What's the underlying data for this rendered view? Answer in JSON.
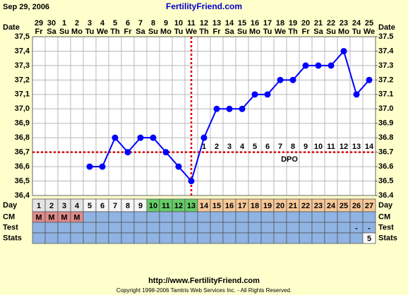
{
  "chart_data": {
    "type": "line",
    "title": "FertilityFriend.com",
    "date": "Sep 29, 2006",
    "date_label": "Date",
    "dates": [
      "29",
      "30",
      "1",
      "2",
      "3",
      "4",
      "5",
      "6",
      "7",
      "8",
      "9",
      "10",
      "11",
      "12",
      "13",
      "14",
      "15",
      "16",
      "17",
      "18",
      "19",
      "20",
      "21",
      "22",
      "23",
      "24",
      "25"
    ],
    "weekdays": [
      "Fr",
      "Sa",
      "Su",
      "Mo",
      "Tu",
      "We",
      "Th",
      "Fr",
      "Sa",
      "Su",
      "Mo",
      "Tu",
      "We",
      "Th",
      "Fr",
      "Sa",
      "Su",
      "Mo",
      "Tu",
      "We",
      "Th",
      "Fr",
      "Sa",
      "Su",
      "Mo",
      "Tu",
      "We"
    ],
    "series": [
      {
        "color": "#0000ff",
        "values": [
          null,
          null,
          null,
          null,
          36.6,
          36.6,
          36.8,
          36.7,
          36.8,
          36.8,
          36.7,
          36.6,
          36.5,
          36.8,
          37.0,
          37.0,
          37.0,
          37.1,
          37.1,
          37.2,
          37.2,
          37.3,
          37.3,
          37.3,
          37.4,
          37.1,
          37.2
        ]
      }
    ],
    "ylim": [
      36.4,
      37.5
    ],
    "yticks": [
      {
        "value": 36.4,
        "label": "36,4"
      },
      {
        "value": 36.5,
        "label": "36,5"
      },
      {
        "value": 36.6,
        "label": "36,6"
      },
      {
        "value": 36.7,
        "label": "36,7"
      },
      {
        "value": 36.8,
        "label": "36,8"
      },
      {
        "value": 36.9,
        "label": "36,9"
      },
      {
        "value": 37.0,
        "label": "37,0"
      },
      {
        "value": 37.1,
        "label": "37,1"
      },
      {
        "value": 37.2,
        "label": "37,2"
      },
      {
        "value": 37.3,
        "label": "37,3"
      },
      {
        "value": 37.4,
        "label": "37,4"
      },
      {
        "value": 37.5,
        "label": "37,5"
      }
    ],
    "y2lim": [
      36.4,
      37.5
    ],
    "y2ticks": [
      36.4,
      36.5,
      36.6,
      36.7,
      36.8,
      36.9,
      {
        "value": 37.0,
        "label": "37.0"
      },
      37.1,
      37.2,
      37.3,
      37.4,
      37.5
    ],
    "grid": true,
    "coverline": 36.7,
    "coverline_color": "#dd0000",
    "ovulation_day": 13,
    "dpo_label": "DPO",
    "dpo": [
      null,
      null,
      null,
      null,
      null,
      null,
      null,
      null,
      null,
      null,
      null,
      null,
      null,
      1,
      2,
      3,
      4,
      5,
      6,
      7,
      8,
      9,
      10,
      11,
      12,
      13,
      14
    ],
    "day_label": "Day",
    "days": [
      1,
      2,
      3,
      4,
      5,
      6,
      7,
      8,
      9,
      10,
      11,
      12,
      13,
      14,
      15,
      16,
      17,
      18,
      19,
      20,
      21,
      22,
      23,
      24,
      25,
      26,
      27
    ],
    "day_colors": [
      "#e4e4e4",
      "#e4e4e4",
      "#e4e4e4",
      "#e4e4e4",
      "#f6f6f6",
      "#f6f6f6",
      "#f6f6f6",
      "#f6f6f6",
      "#f6f6f6",
      "#66cc66",
      "#66cc66",
      "#66cc66",
      "#66cc66",
      "#f8c898",
      "#f8c898",
      "#f8c898",
      "#f8c898",
      "#f8c898",
      "#f8c898",
      "#f8c898",
      "#f8c898",
      "#f8c898",
      "#f8c898",
      "#f8c898",
      "#f8c898",
      "#f8c898",
      "#f8c898"
    ],
    "row_color": "#8fb3e3",
    "cm_label": "CM",
    "cm": [
      "M",
      "M",
      "M",
      "M",
      null,
      null,
      null,
      null,
      null,
      null,
      null,
      null,
      null,
      null,
      null,
      null,
      null,
      null,
      null,
      null,
      null,
      null,
      null,
      null,
      null,
      null,
      null
    ],
    "cm_color": "#e08a8a",
    "test_label": "Test",
    "test": [
      null,
      null,
      null,
      null,
      null,
      null,
      null,
      null,
      null,
      null,
      null,
      null,
      null,
      null,
      null,
      null,
      null,
      null,
      null,
      null,
      null,
      null,
      null,
      null,
      null,
      "-",
      "-"
    ],
    "stats_label": "Stats",
    "stats": [
      null,
      null,
      null,
      null,
      null,
      null,
      null,
      null,
      null,
      null,
      null,
      null,
      null,
      null,
      null,
      null,
      null,
      null,
      null,
      null,
      null,
      null,
      null,
      null,
      null,
      null,
      5
    ],
    "stats_color": "#ffffff",
    "url": "http://www.FertilityFriend.com",
    "copyright": "Copyright 1998-2006 Tamtris Web Services Inc. - All Rights Reserved."
  }
}
